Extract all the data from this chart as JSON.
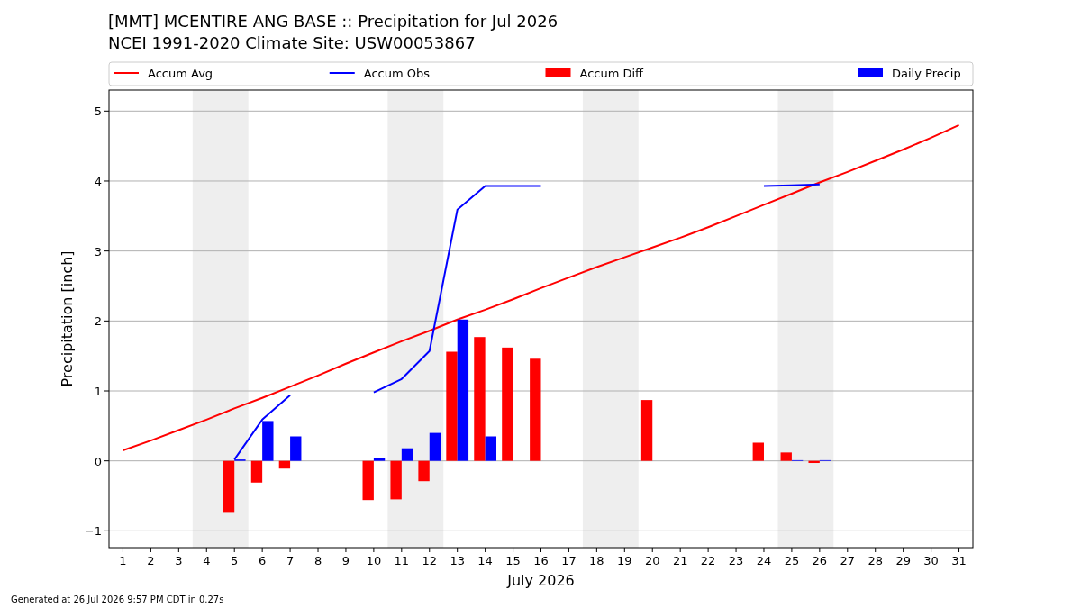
{
  "chart_data": {
    "type": "bar",
    "title": "[MMT] MCENTIRE ANG BASE :: Precipitation for Jul 2026",
    "subtitle": "NCEI 1991-2020 Climate Site: USW00053867",
    "xlabel": "July 2026",
    "ylabel": "Precipitation [inch]",
    "x": [
      1,
      2,
      3,
      4,
      5,
      6,
      7,
      8,
      9,
      10,
      11,
      12,
      13,
      14,
      15,
      16,
      17,
      18,
      19,
      20,
      21,
      22,
      23,
      24,
      25,
      26,
      27,
      28,
      29,
      30,
      31
    ],
    "series": [
      {
        "name": "Accum Avg",
        "type": "line",
        "color": "#ff0000",
        "values": [
          0.15,
          0.29,
          0.44,
          0.59,
          0.75,
          0.9,
          1.06,
          1.22,
          1.39,
          1.55,
          1.71,
          1.86,
          2.02,
          2.16,
          2.31,
          2.47,
          2.62,
          2.77,
          2.91,
          3.05,
          3.19,
          3.34,
          3.5,
          3.66,
          3.82,
          3.98,
          4.13,
          4.29,
          4.45,
          4.62,
          4.8
        ]
      },
      {
        "name": "Accum Obs",
        "type": "line",
        "color": "#0000ff",
        "values": [
          null,
          null,
          null,
          null,
          0.02,
          0.59,
          0.94,
          null,
          null,
          0.98,
          1.17,
          1.57,
          3.59,
          3.93,
          3.93,
          3.93,
          null,
          null,
          null,
          null,
          null,
          null,
          null,
          3.93,
          3.94,
          3.95,
          null,
          null,
          null,
          null,
          null
        ]
      },
      {
        "name": "Accum Diff",
        "color": "#ff0000",
        "values": [
          null,
          null,
          null,
          null,
          -0.73,
          -0.31,
          -0.11,
          null,
          null,
          -0.56,
          -0.55,
          -0.29,
          1.56,
          1.77,
          1.62,
          1.46,
          null,
          null,
          null,
          0.87,
          null,
          null,
          null,
          0.26,
          0.12,
          -0.03,
          null,
          null,
          null,
          null,
          null
        ]
      },
      {
        "name": "Daily Precip",
        "color": "#0000ff",
        "values": [
          null,
          null,
          null,
          null,
          0.02,
          0.57,
          0.35,
          null,
          null,
          0.04,
          0.18,
          0.4,
          2.02,
          0.35,
          null,
          null,
          null,
          null,
          null,
          null,
          null,
          null,
          null,
          null,
          0.01,
          0.01,
          null,
          null,
          null,
          null,
          null
        ]
      }
    ],
    "xlim": [
      0.5,
      31.5
    ],
    "xticks": [
      1,
      2,
      3,
      4,
      5,
      6,
      7,
      8,
      9,
      10,
      11,
      12,
      13,
      14,
      15,
      16,
      17,
      18,
      19,
      20,
      21,
      22,
      23,
      24,
      25,
      26,
      27,
      28,
      29,
      30,
      31
    ],
    "ylim": [
      -1.24,
      5.3
    ],
    "yticks": [
      {
        "value": -1,
        "label": "−1"
      },
      0,
      1,
      2,
      3,
      4,
      5
    ],
    "grid": "y",
    "legend": "top",
    "bands": [
      {
        "axis": "x",
        "from": 3.5,
        "to": 5.5,
        "color": "#eeeeee"
      },
      {
        "axis": "x",
        "from": 10.5,
        "to": 12.5,
        "color": "#eeeeee"
      },
      {
        "axis": "x",
        "from": 17.5,
        "to": 19.5,
        "color": "#eeeeee"
      },
      {
        "axis": "x",
        "from": 24.5,
        "to": 26.5,
        "color": "#eeeeee"
      }
    ],
    "annotations": [
      "Generated at 26 Jul 2026 9:57 PM CDT in 0.27s"
    ]
  }
}
